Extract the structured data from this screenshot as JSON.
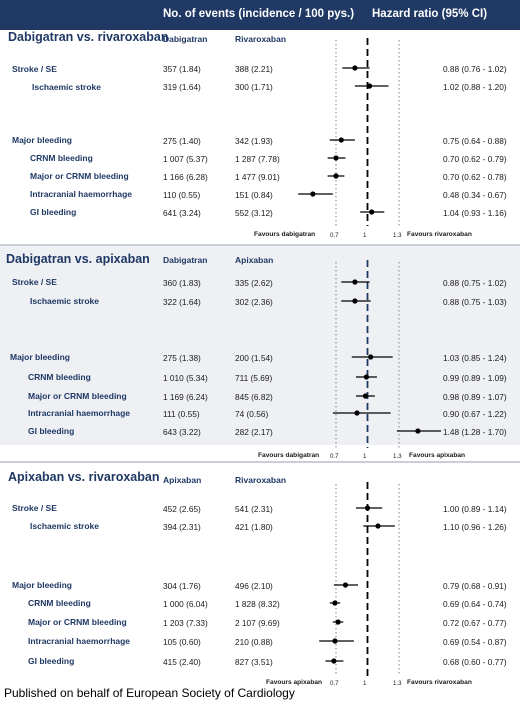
{
  "header": {
    "events_heading": "No. of events (incidence / 100 pys.)",
    "hr_heading": "Hazard ratio (95% CI)"
  },
  "footer": "Published on behalf of European Society of Cardiology",
  "colors": {
    "header_bg": "#1f3864",
    "text": "#1f3864",
    "panel_bg": "#eef0f4",
    "ref_line_dark": "#000000",
    "ref_line_blue": "#1f3864"
  },
  "chart_data": [
    {
      "type": "forest",
      "title": "Dabigatran vs. rivaroxaban",
      "col1": "Dabigatran",
      "col2": "Rivaroxaban",
      "favours_left": "Favours dabigatran",
      "favours_right": "Favours rivaroxaban",
      "ticks": [
        "0.7",
        "1",
        "1.3"
      ],
      "rows": [
        {
          "label": "Stroke / SE",
          "indent": false,
          "n1": "357 (1.84)",
          "n2": "388 (2.21)",
          "hr_text": "0.88 (0.76 - 1.02)",
          "hr": 0.88,
          "lo": 0.76,
          "hi": 1.02
        },
        {
          "label": "Ischaemic stroke",
          "indent": true,
          "n1": "319 (1.64)",
          "n2": "300 (1.71)",
          "hr_text": "1.02 (0.88 - 1.20)",
          "hr": 1.02,
          "lo": 0.88,
          "hi": 1.2
        },
        {
          "label": "Major bleeding",
          "indent": false,
          "n1": "275 (1.40)",
          "n2": "342 (1.93)",
          "hr_text": "0.75 (0.64 - 0.88)",
          "hr": 0.75,
          "lo": 0.64,
          "hi": 0.88
        },
        {
          "label": "CRNM bleeding",
          "indent": true,
          "n1": "1 007 (5.37)",
          "n2": "1 287 (7.78)",
          "hr_text": "0.70 (0.62 - 0.79)",
          "hr": 0.7,
          "lo": 0.62,
          "hi": 0.79
        },
        {
          "label": "Major or CRNM bleeding",
          "indent": true,
          "n1": "1 166 (6.28)",
          "n2": "1 477 (9.01)",
          "hr_text": "0.70 (0.62 - 0.78)",
          "hr": 0.7,
          "lo": 0.62,
          "hi": 0.78
        },
        {
          "label": "Intracranial haemorrhage",
          "indent": true,
          "n1": "110 (0.55)",
          "n2": "151 (0.84)",
          "hr_text": "0.48 (0.34 - 0.67)",
          "hr": 0.48,
          "lo": 0.34,
          "hi": 0.67
        },
        {
          "label": "GI bleeding",
          "indent": true,
          "n1": "641 (3.24)",
          "n2": "552 (3.12)",
          "hr_text": "1.04 (0.93 - 1.16)",
          "hr": 1.04,
          "lo": 0.93,
          "hi": 1.16
        }
      ]
    },
    {
      "type": "forest",
      "title": "Dabigatran vs. apixaban",
      "col1": "Dabigatran",
      "col2": "Apixaban",
      "favours_left": "Favours dabigatran",
      "favours_right": "Favours apixaban",
      "ticks": [
        "0.7",
        "1",
        "1.3"
      ],
      "rows": [
        {
          "label": "Stroke / SE",
          "indent": false,
          "n1": "360 (1.83)",
          "n2": "335 (2.62)",
          "hr_text": "0.88 (0.75 - 1.02)",
          "hr": 0.88,
          "lo": 0.75,
          "hi": 1.02
        },
        {
          "label": "Ischaemic stroke",
          "indent": true,
          "n1": "322 (1.64)",
          "n2": "302 (2.36)",
          "hr_text": "0.88 (0.75 - 1.03)",
          "hr": 0.88,
          "lo": 0.75,
          "hi": 1.03
        },
        {
          "label": "Major bleeding",
          "indent": false,
          "n1": "275 (1.38)",
          "n2": "200 (1.54)",
          "hr_text": "1.03 (0.85 - 1.24)",
          "hr": 1.03,
          "lo": 0.85,
          "hi": 1.24
        },
        {
          "label": "CRNM bleeding",
          "indent": true,
          "n1": "1 010 (5.34)",
          "n2": "711 (5.69)",
          "hr_text": "0.99 (0.89 - 1.09)",
          "hr": 0.99,
          "lo": 0.89,
          "hi": 1.09
        },
        {
          "label": "Major or CRNM bleeding",
          "indent": true,
          "n1": "1 169 (6.24)",
          "n2": "845 (6.82)",
          "hr_text": "0.98 (0.89 - 1.07)",
          "hr": 0.98,
          "lo": 0.89,
          "hi": 1.07
        },
        {
          "label": "Intracranial haemorrhage",
          "indent": true,
          "n1": "111 (0.55)",
          "n2": "74 (0.56)",
          "hr_text": "0.90 (0.67 - 1.22)",
          "hr": 0.9,
          "lo": 0.67,
          "hi": 1.22
        },
        {
          "label": "GI bleeding",
          "indent": true,
          "n1": "643 (3.22)",
          "n2": "282 (2.17)",
          "hr_text": "1.48 (1.28 - 1.70)",
          "hr": 1.48,
          "lo": 1.28,
          "hi": 1.7
        }
      ]
    },
    {
      "type": "forest",
      "title": "Apixaban vs. rivaroxaban",
      "col1": "Apixaban",
      "col2": "Rivaroxaban",
      "favours_left": "Favours apixaban",
      "favours_right": "Favours rivaroxaban",
      "ticks": [
        "0.7",
        "1",
        "1.3"
      ],
      "rows": [
        {
          "label": "Stroke / SE",
          "indent": false,
          "n1": "452 (2.65)",
          "n2": "541 (2.31)",
          "hr_text": "1.00 (0.89 - 1.14)",
          "hr": 1.0,
          "lo": 0.89,
          "hi": 1.14
        },
        {
          "label": "Ischaemic stroke",
          "indent": true,
          "n1": "394 (2.31)",
          "n2": "421 (1.80)",
          "hr_text": "1.10 (0.96 - 1.26)",
          "hr": 1.1,
          "lo": 0.96,
          "hi": 1.26
        },
        {
          "label": "Major bleeding",
          "indent": false,
          "n1": "304 (1.76)",
          "n2": "496 (2.10)",
          "hr_text": "0.79 (0.68 - 0.91)",
          "hr": 0.79,
          "lo": 0.68,
          "hi": 0.91
        },
        {
          "label": "CRNM bleeding",
          "indent": true,
          "n1": "1 000 (6.04)",
          "n2": "1 828 (8.32)",
          "hr_text": "0.69 (0.64 - 0.74)",
          "hr": 0.69,
          "lo": 0.64,
          "hi": 0.74
        },
        {
          "label": "Major or CRNM bleeding",
          "indent": true,
          "n1": "1 203 (7.33)",
          "n2": "2 107 (9.69)",
          "hr_text": "0.72 (0.67 - 0.77)",
          "hr": 0.72,
          "lo": 0.67,
          "hi": 0.77
        },
        {
          "label": "Intracranial haemorrhage",
          "indent": true,
          "n1": "105 (0.60)",
          "n2": "210 (0.88)",
          "hr_text": "0.69 (0.54 - 0.87)",
          "hr": 0.69,
          "lo": 0.54,
          "hi": 0.87
        },
        {
          "label": "GI bleeding",
          "indent": true,
          "n1": "415 (2.40)",
          "n2": "827 (3.51)",
          "hr_text": "0.68 (0.60 - 0.77)",
          "hr": 0.68,
          "lo": 0.6,
          "hi": 0.77
        }
      ]
    }
  ]
}
